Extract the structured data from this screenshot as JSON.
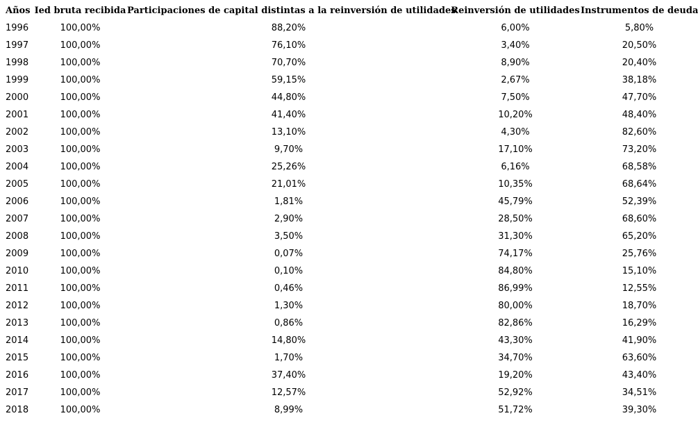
{
  "colors": {
    "text": "#000000",
    "background": "#ffffff"
  },
  "chart_data": {
    "type": "table",
    "columns": [
      "Años",
      "Ied bruta recibida",
      "Participaciones de capital distintas a la reinversión de utilidades",
      "Reinversión de utilidades",
      "Instrumentos de deuda"
    ],
    "rows": [
      [
        "1996",
        "100,00%",
        "88,20%",
        "6,00%",
        "5,80%"
      ],
      [
        "1997",
        "100,00%",
        "76,10%",
        "3,40%",
        "20,50%"
      ],
      [
        "1998",
        "100,00%",
        "70,70%",
        "8,90%",
        "20,40%"
      ],
      [
        "1999",
        "100,00%",
        "59,15%",
        "2,67%",
        "38,18%"
      ],
      [
        "2000",
        "100,00%",
        "44,80%",
        "7,50%",
        "47,70%"
      ],
      [
        "2001",
        "100,00%",
        "41,40%",
        "10,20%",
        "48,40%"
      ],
      [
        "2002",
        "100,00%",
        "13,10%",
        "4,30%",
        "82,60%"
      ],
      [
        "2003",
        "100,00%",
        "9,70%",
        "17,10%",
        "73,20%"
      ],
      [
        "2004",
        "100,00%",
        "25,26%",
        "6,16%",
        "68,58%"
      ],
      [
        "2005",
        "100,00%",
        "21,01%",
        "10,35%",
        "68,64%"
      ],
      [
        "2006",
        "100,00%",
        "1,81%",
        "45,79%",
        "52,39%"
      ],
      [
        "2007",
        "100,00%",
        "2,90%",
        "28,50%",
        "68,60%"
      ],
      [
        "2008",
        "100,00%",
        "3,50%",
        "31,30%",
        "65,20%"
      ],
      [
        "2009",
        "100,00%",
        "0,07%",
        "74,17%",
        "25,76%"
      ],
      [
        "2010",
        "100,00%",
        "0,10%",
        "84,80%",
        "15,10%"
      ],
      [
        "2011",
        "100,00%",
        "0,46%",
        "86,99%",
        "12,55%"
      ],
      [
        "2012",
        "100,00%",
        "1,30%",
        "80,00%",
        "18,70%"
      ],
      [
        "2013",
        "100,00%",
        "0,86%",
        "82,86%",
        "16,29%"
      ],
      [
        "2014",
        "100,00%",
        "14,80%",
        "43,30%",
        "41,90%"
      ],
      [
        "2015",
        "100,00%",
        "1,70%",
        "34,70%",
        "63,60%"
      ],
      [
        "2016",
        "100,00%",
        "37,40%",
        "19,20%",
        "43,40%"
      ],
      [
        "2017",
        "100,00%",
        "12,57%",
        "52,92%",
        "34,51%"
      ],
      [
        "2018",
        "100,00%",
        "8,99%",
        "51,72%",
        "39,30%"
      ]
    ]
  }
}
